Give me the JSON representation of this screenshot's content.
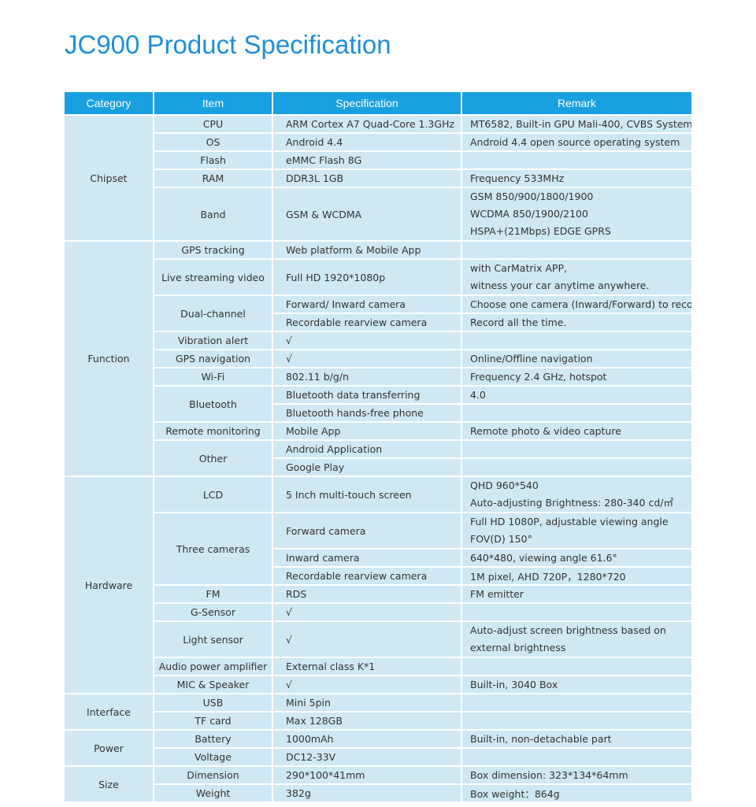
{
  "title": "JC900 Product Specification",
  "table": {
    "headers": [
      "Category",
      "Item",
      "Specification",
      "Remark"
    ],
    "sections": [
      {
        "category": "Chipset",
        "items": [
          {
            "name": "CPU",
            "specs": [
              {
                "spec": "ARM Cortex A7 Quad-Core 1.3GHz",
                "remark": "MT6582, Built-in GPU Mali-400, CVBS System"
              }
            ]
          },
          {
            "name": "OS",
            "specs": [
              {
                "spec": "Android 4.4",
                "remark": "Android 4.4 open source operating system"
              }
            ]
          },
          {
            "name": "Flash",
            "specs": [
              {
                "spec": "eMMC Flash 8G"
              }
            ]
          },
          {
            "name": "RAM",
            "specs": [
              {
                "spec": "DDR3L 1GB",
                "remark": "Frequency 533MHz"
              }
            ]
          },
          {
            "name": "Band",
            "specs": [
              {
                "spec": "GSM & WCDMA",
                "remark": [
                  "GSM 850/900/1800/1900",
                  "WCDMA 850/1900/2100",
                  "HSPA+(21Mbps)  EDGE  GPRS"
                ]
              }
            ]
          }
        ]
      },
      {
        "category": "Function",
        "items": [
          {
            "name": "GPS tracking",
            "specs": [
              {
                "spec": "Web platform & Mobile App"
              }
            ]
          },
          {
            "name": "Live streaming video",
            "specs": [
              {
                "spec": "Full HD 1920*1080p",
                "remark": [
                  "with CarMatrix APP,",
                  "witness your car anytime anywhere."
                ]
              }
            ]
          },
          {
            "name": "Dual-channel",
            "specs": [
              {
                "spec": "Forward/ Inward camera",
                "remark": "Choose one camera (Inward/Forward) to record."
              },
              {
                "spec": "Recordable rearview camera",
                "remark": "Record all the time."
              }
            ]
          },
          {
            "name": "Vibration alert",
            "specs": [
              {
                "spec": "√"
              }
            ]
          },
          {
            "name": "GPS navigation",
            "specs": [
              {
                "spec": "√",
                "remark": "Online/Offline navigation"
              }
            ]
          },
          {
            "name": "Wi-Fi",
            "specs": [
              {
                "spec": "802.11 b/g/n",
                "remark": "Frequency 2.4 GHz, hotspot"
              }
            ]
          },
          {
            "name": "Bluetooth",
            "specs": [
              {
                "spec": "Bluetooth data transferring",
                "remark": "4.0"
              },
              {
                "spec": "Bluetooth hands-free phone"
              }
            ]
          },
          {
            "name": "Remote monitoring",
            "specs": [
              {
                "spec": "Mobile App",
                "remark": "Remote photo & video capture"
              }
            ]
          },
          {
            "name": "Other",
            "specs": [
              {
                "spec": "Android Application"
              },
              {
                "spec": "Google Play"
              }
            ]
          }
        ]
      },
      {
        "category": "Hardware",
        "items": [
          {
            "name": "LCD",
            "specs": [
              {
                "spec": "5 Inch multi-touch screen",
                "remark": [
                  "QHD 960*540",
                  "Auto-adjusting Brightness: 280-340 cd/㎡"
                ]
              }
            ]
          },
          {
            "name": "Three cameras",
            "specs": [
              {
                "spec": "Forward camera",
                "remark": [
                  "Full HD 1080P, adjustable viewing angle",
                  "FOV(D) 150°"
                ]
              },
              {
                "spec": "Inward camera",
                "remark": "640*480, viewing angle 61.6°"
              },
              {
                "spec": "Recordable rearview camera",
                "remark": "1M pixel, AHD 720P，1280*720"
              }
            ]
          },
          {
            "name": "FM",
            "specs": [
              {
                "spec": "RDS",
                "remark": "FM emitter"
              }
            ]
          },
          {
            "name": "G-Sensor",
            "specs": [
              {
                "spec": "√"
              }
            ]
          },
          {
            "name": "Light sensor",
            "specs": [
              {
                "spec": "√",
                "remark": [
                  "Auto-adjust screen brightness based on",
                  "external brightness"
                ]
              }
            ]
          },
          {
            "name": "Audio power amplifier",
            "specs": [
              {
                "spec": "External class K*1"
              }
            ]
          },
          {
            "name": "MIC & Speaker",
            "specs": [
              {
                "spec": "√",
                "remark": "Built-in, 3040 Box"
              }
            ]
          }
        ]
      },
      {
        "category": "Interface",
        "items": [
          {
            "name": "USB",
            "specs": [
              {
                "spec": "Mini 5pin"
              }
            ]
          },
          {
            "name": "TF card",
            "specs": [
              {
                "spec": "Max 128GB"
              }
            ]
          }
        ]
      },
      {
        "category": "Power",
        "items": [
          {
            "name": "Battery",
            "specs": [
              {
                "spec": "1000mAh",
                "remark": "Built-in, non-detachable part"
              }
            ]
          },
          {
            "name": "Voltage",
            "specs": [
              {
                "spec": "DC12-33V"
              }
            ]
          }
        ]
      },
      {
        "category": "Size",
        "items": [
          {
            "name": "Dimension",
            "specs": [
              {
                "spec": "290*100*41mm",
                "remark": "Box dimension: 323*134*64mm"
              }
            ]
          },
          {
            "name": "Weight",
            "specs": [
              {
                "spec": "382g",
                "remark": "Box weight：864g"
              }
            ]
          }
        ]
      }
    ]
  }
}
